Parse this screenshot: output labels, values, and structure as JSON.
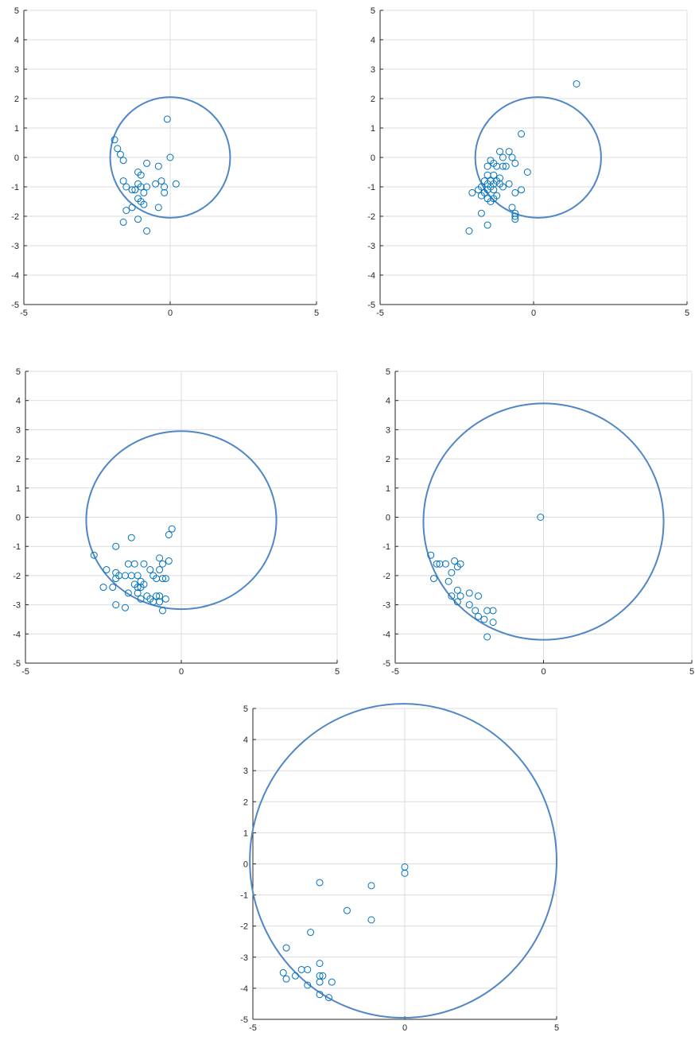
{
  "colors": {
    "marker": "#0072bd",
    "circle": "#4f86c6",
    "grid": "#dcdcdc",
    "axis": "#262626"
  },
  "chart_data": [
    {
      "type": "scatter",
      "xlim": [
        -5,
        5
      ],
      "ylim": [
        -5,
        5
      ],
      "xticks": [
        -5,
        0,
        5
      ],
      "yticks": [
        -5,
        -4,
        -3,
        -2,
        -1,
        0,
        1,
        2,
        3,
        4,
        5
      ],
      "grid": true,
      "circle": {
        "cx": 0,
        "cy": 0,
        "r": 2.05
      },
      "points": [
        [
          -0.1,
          1.3
        ],
        [
          -1.9,
          0.6
        ],
        [
          -1.8,
          0.3
        ],
        [
          -1.7,
          0.1
        ],
        [
          -1.6,
          -0.1
        ],
        [
          0.0,
          0.0
        ],
        [
          -1.6,
          -0.8
        ],
        [
          -1.5,
          -1.0
        ],
        [
          -0.8,
          -0.2
        ],
        [
          -0.4,
          -0.3
        ],
        [
          -1.1,
          -0.5
        ],
        [
          -1.0,
          -0.6
        ],
        [
          -0.3,
          -0.8
        ],
        [
          -0.5,
          -0.9
        ],
        [
          0.2,
          -0.9
        ],
        [
          -1.1,
          -0.9
        ],
        [
          -1.0,
          -1.0
        ],
        [
          -0.8,
          -1.0
        ],
        [
          -0.2,
          -1.0
        ],
        [
          -1.3,
          -1.1
        ],
        [
          -1.2,
          -1.1
        ],
        [
          -0.2,
          -1.2
        ],
        [
          -0.9,
          -1.2
        ],
        [
          -1.1,
          -1.4
        ],
        [
          -1.0,
          -1.5
        ],
        [
          -0.9,
          -1.6
        ],
        [
          -0.4,
          -1.7
        ],
        [
          -1.3,
          -1.7
        ],
        [
          -1.5,
          -1.8
        ],
        [
          -1.1,
          -2.1
        ],
        [
          -1.6,
          -2.2
        ],
        [
          -0.8,
          -2.5
        ]
      ]
    },
    {
      "type": "scatter",
      "xlim": [
        -5,
        5
      ],
      "ylim": [
        -5,
        5
      ],
      "xticks": [
        -5,
        0,
        5
      ],
      "yticks": [
        -5,
        -4,
        -3,
        -2,
        -1,
        0,
        1,
        2,
        3,
        4,
        5
      ],
      "grid": true,
      "circle": {
        "cx": 0.15,
        "cy": 0,
        "r": 2.05
      },
      "points": [
        [
          1.4,
          2.5
        ],
        [
          -0.4,
          0.8
        ],
        [
          -1.1,
          0.2
        ],
        [
          -0.8,
          0.2
        ],
        [
          -1.0,
          0.0
        ],
        [
          -0.7,
          0.0
        ],
        [
          -1.4,
          -0.1
        ],
        [
          -1.3,
          -0.2
        ],
        [
          -1.5,
          -0.3
        ],
        [
          -1.2,
          -0.3
        ],
        [
          -1.0,
          -0.3
        ],
        [
          -0.9,
          -0.3
        ],
        [
          -0.6,
          -0.2
        ],
        [
          -0.2,
          -0.5
        ],
        [
          -1.5,
          -0.6
        ],
        [
          -1.3,
          -0.6
        ],
        [
          -1.1,
          -0.7
        ],
        [
          -1.6,
          -0.8
        ],
        [
          -1.4,
          -0.8
        ],
        [
          -1.2,
          -0.8
        ],
        [
          -1.5,
          -0.9
        ],
        [
          -1.3,
          -0.9
        ],
        [
          -1.1,
          -0.9
        ],
        [
          -1.7,
          -1.0
        ],
        [
          -1.4,
          -1.0
        ],
        [
          -1.0,
          -1.0
        ],
        [
          -0.8,
          -0.9
        ],
        [
          -1.8,
          -1.1
        ],
        [
          -1.5,
          -1.1
        ],
        [
          -1.3,
          -1.1
        ],
        [
          -2.0,
          -1.2
        ],
        [
          -1.6,
          -1.2
        ],
        [
          -1.2,
          -1.3
        ],
        [
          -0.4,
          -1.1
        ],
        [
          -0.6,
          -1.2
        ],
        [
          -1.7,
          -1.3
        ],
        [
          -1.5,
          -1.4
        ],
        [
          -1.3,
          -1.4
        ],
        [
          -1.4,
          -1.5
        ],
        [
          -0.7,
          -1.7
        ],
        [
          -0.6,
          -1.9
        ],
        [
          -1.7,
          -1.9
        ],
        [
          -0.6,
          -2.0
        ],
        [
          -0.6,
          -2.1
        ],
        [
          -1.5,
          -2.3
        ],
        [
          -2.1,
          -2.5
        ]
      ]
    },
    {
      "type": "scatter",
      "xlim": [
        -5,
        5
      ],
      "ylim": [
        -5,
        5
      ],
      "xticks": [
        -5,
        0,
        5
      ],
      "yticks": [
        -5,
        -4,
        -3,
        -2,
        -1,
        0,
        1,
        2,
        3,
        4,
        5
      ],
      "grid": true,
      "circle": {
        "cx": 0,
        "cy": -0.1,
        "r": 3.05
      },
      "points": [
        [
          -0.3,
          -0.4
        ],
        [
          -0.4,
          -0.6
        ],
        [
          -1.6,
          -0.7
        ],
        [
          -2.1,
          -1.0
        ],
        [
          -2.8,
          -1.3
        ],
        [
          -0.7,
          -1.4
        ],
        [
          -0.4,
          -1.5
        ],
        [
          -1.7,
          -1.6
        ],
        [
          -1.5,
          -1.6
        ],
        [
          -1.2,
          -1.6
        ],
        [
          -0.6,
          -1.6
        ],
        [
          -2.4,
          -1.8
        ],
        [
          -1.0,
          -1.8
        ],
        [
          -0.7,
          -1.8
        ],
        [
          -2.1,
          -1.9
        ],
        [
          -2.0,
          -2.0
        ],
        [
          -1.8,
          -2.0
        ],
        [
          -1.6,
          -2.0
        ],
        [
          -1.4,
          -2.0
        ],
        [
          -0.9,
          -2.0
        ],
        [
          -2.1,
          -2.1
        ],
        [
          -0.8,
          -2.1
        ],
        [
          -0.6,
          -2.1
        ],
        [
          -0.5,
          -2.1
        ],
        [
          -1.3,
          -2.2
        ],
        [
          -1.5,
          -2.3
        ],
        [
          -1.2,
          -2.3
        ],
        [
          -2.5,
          -2.4
        ],
        [
          -2.2,
          -2.4
        ],
        [
          -1.4,
          -2.4
        ],
        [
          -1.3,
          -2.4
        ],
        [
          -1.7,
          -2.6
        ],
        [
          -1.4,
          -2.6
        ],
        [
          -1.1,
          -2.7
        ],
        [
          -0.8,
          -2.7
        ],
        [
          -0.7,
          -2.7
        ],
        [
          -1.3,
          -2.8
        ],
        [
          -1.0,
          -2.8
        ],
        [
          -0.5,
          -2.8
        ],
        [
          -0.9,
          -2.9
        ],
        [
          -0.7,
          -2.9
        ],
        [
          -2.1,
          -3.0
        ],
        [
          -1.8,
          -3.1
        ],
        [
          -0.6,
          -3.2
        ]
      ]
    },
    {
      "type": "scatter",
      "xlim": [
        -5,
        5
      ],
      "ylim": [
        -5,
        5
      ],
      "xticks": [
        -5,
        0,
        5
      ],
      "yticks": [
        -5,
        -4,
        -3,
        -2,
        -1,
        0,
        1,
        2,
        3,
        4,
        5
      ],
      "grid": true,
      "circle": {
        "cx": 0,
        "cy": -0.15,
        "r": 4.05
      },
      "points": [
        [
          -0.1,
          0.0
        ],
        [
          -3.8,
          -1.3
        ],
        [
          -3.6,
          -1.6
        ],
        [
          -3.5,
          -1.6
        ],
        [
          -3.3,
          -1.6
        ],
        [
          -3.0,
          -1.5
        ],
        [
          -2.8,
          -1.6
        ],
        [
          -2.9,
          -1.7
        ],
        [
          -3.1,
          -1.9
        ],
        [
          -3.7,
          -2.1
        ],
        [
          -3.2,
          -2.2
        ],
        [
          -3.1,
          -2.7
        ],
        [
          -2.9,
          -2.5
        ],
        [
          -2.8,
          -2.7
        ],
        [
          -2.5,
          -2.6
        ],
        [
          -2.2,
          -2.7
        ],
        [
          -2.9,
          -2.9
        ],
        [
          -2.5,
          -3.0
        ],
        [
          -2.3,
          -3.2
        ],
        [
          -2.2,
          -3.4
        ],
        [
          -1.9,
          -3.2
        ],
        [
          -1.7,
          -3.2
        ],
        [
          -2.0,
          -3.5
        ],
        [
          -1.7,
          -3.6
        ],
        [
          -1.9,
          -4.1
        ]
      ]
    },
    {
      "type": "scatter",
      "xlim": [
        -5,
        5
      ],
      "ylim": [
        -5,
        5
      ],
      "xticks": [
        -5,
        0,
        5
      ],
      "yticks": [
        -5,
        -4,
        -3,
        -2,
        -1,
        0,
        1,
        2,
        3,
        4,
        5
      ],
      "grid": true,
      "circle": {
        "cx": -0.05,
        "cy": 0.1,
        "r": 5.05
      },
      "points": [
        [
          0.0,
          -0.1
        ],
        [
          0.0,
          -0.3
        ],
        [
          -2.8,
          -0.6
        ],
        [
          -1.1,
          -0.7
        ],
        [
          -1.9,
          -1.5
        ],
        [
          -1.1,
          -1.8
        ],
        [
          -3.1,
          -2.2
        ],
        [
          -3.9,
          -2.7
        ],
        [
          -2.8,
          -3.2
        ],
        [
          -3.4,
          -3.4
        ],
        [
          -3.2,
          -3.4
        ],
        [
          -4.0,
          -3.5
        ],
        [
          -2.8,
          -3.6
        ],
        [
          -2.7,
          -3.6
        ],
        [
          -3.6,
          -3.6
        ],
        [
          -3.9,
          -3.7
        ],
        [
          -2.8,
          -3.8
        ],
        [
          -2.4,
          -3.8
        ],
        [
          -3.2,
          -3.9
        ],
        [
          -2.8,
          -4.2
        ],
        [
          -2.5,
          -4.3
        ]
      ]
    }
  ]
}
